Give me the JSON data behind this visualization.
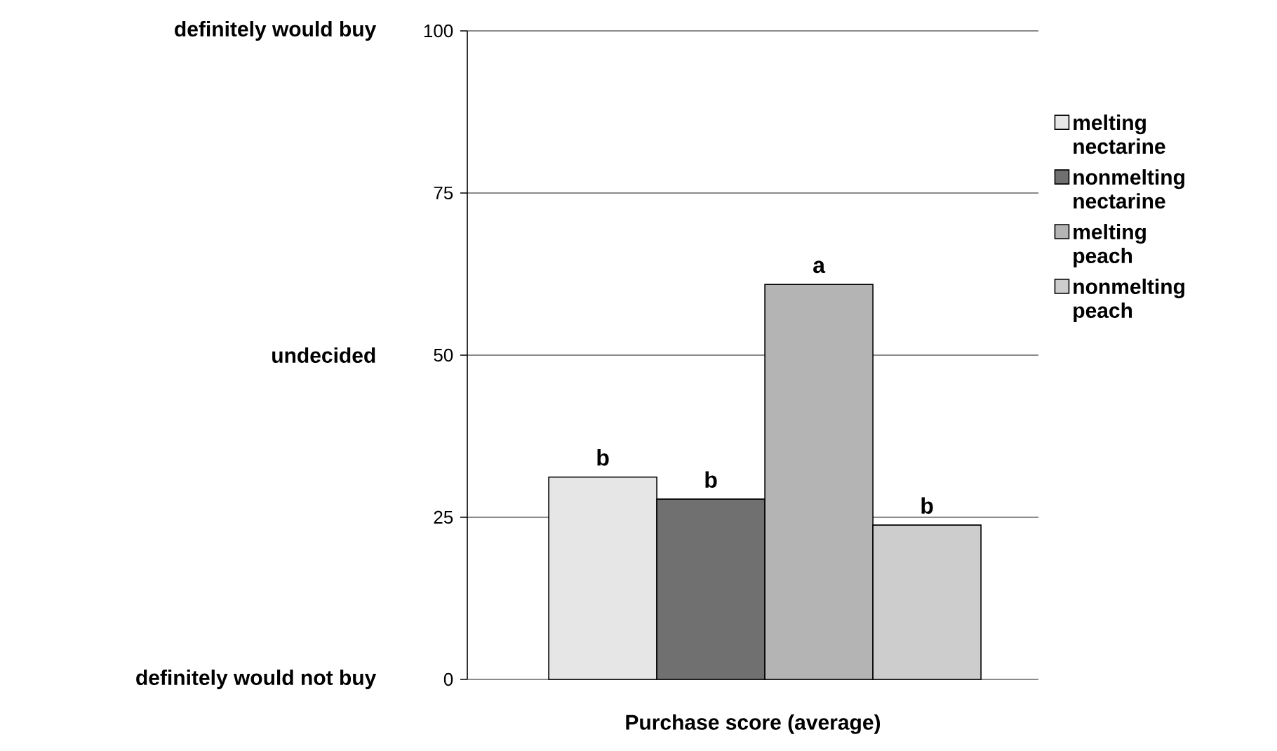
{
  "chart_data": {
    "type": "bar",
    "xlabel": "Purchase score (average)",
    "categories": [
      null
    ],
    "series": [
      {
        "name": "melting nectarine",
        "color": "#e6e6e6",
        "values": [
          31.2
        ],
        "value_labels": [
          "b"
        ]
      },
      {
        "name": "nonmelting nectarine",
        "color": "#707070",
        "values": [
          27.8
        ],
        "value_labels": [
          "b"
        ]
      },
      {
        "name": "melting peach",
        "color": "#b4b4b4",
        "values": [
          60.9
        ],
        "value_labels": [
          "a"
        ]
      },
      {
        "name": "nonmelting peach",
        "color": "#cdcdcd",
        "values": [
          23.8
        ],
        "value_labels": [
          "b"
        ]
      }
    ],
    "ylim": [
      0,
      100
    ],
    "yticks": [
      0,
      25,
      50,
      75,
      100
    ],
    "grid": "y",
    "legend": "right",
    "annotations": [
      "definitely would buy",
      "undecided",
      "definitely would not buy"
    ]
  }
}
